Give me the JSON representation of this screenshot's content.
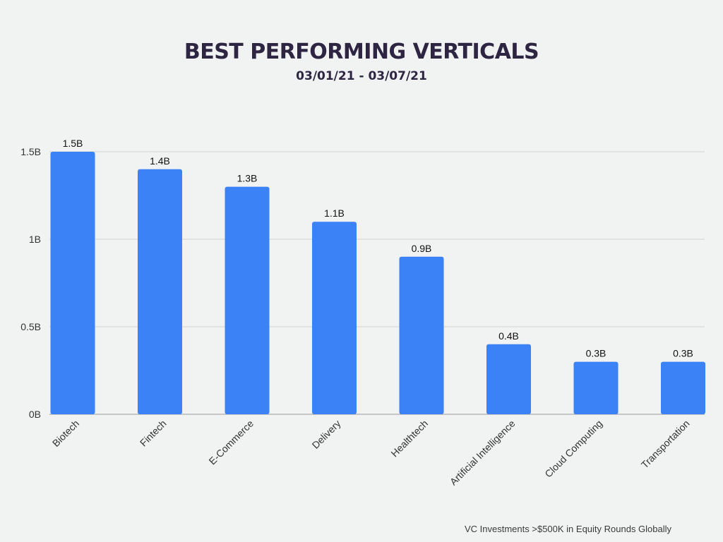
{
  "title": "BEST PERFORMING VERTICALS",
  "subtitle": "03/01/21 - 03/07/21",
  "footnote": "VC Investments >$500K in Equity Rounds Globally",
  "colors": {
    "background": "#f1f2f2",
    "bar": "#3b82f6",
    "grid": "#cfd2d4",
    "title": "#2e2542"
  },
  "chart_data": {
    "type": "bar",
    "title": "BEST PERFORMING VERTICALS",
    "subtitle": "03/01/21 - 03/07/21",
    "categories": [
      "Biotech",
      "Fintech",
      "E-Commerce",
      "Delivery",
      "Healthtech",
      "Artificial Intelligence",
      "Cloud Computing",
      "Transportation"
    ],
    "values": [
      1.5,
      1.4,
      1.3,
      1.1,
      0.9,
      0.4,
      0.3,
      0.3
    ],
    "data_labels": [
      "1.5B",
      "1.4B",
      "1.3B",
      "1.1B",
      "0.9B",
      "0.4B",
      "0.3B",
      "0.3B"
    ],
    "unit": "B",
    "ylim": [
      0,
      1.5
    ],
    "yticks": [
      0,
      0.5,
      1,
      1.5
    ],
    "ytick_labels": [
      "0B",
      "0.5B",
      "1B",
      "1.5B"
    ],
    "xlabel": "",
    "ylabel": "",
    "grid": true,
    "legend": "none"
  }
}
